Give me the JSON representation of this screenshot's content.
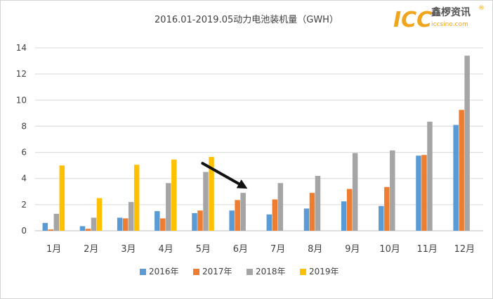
{
  "chart_data": {
    "type": "bar",
    "title": "2016.01-2019.05动力电池装机量（GWH）",
    "categories": [
      "1月",
      "2月",
      "3月",
      "4月",
      "5月",
      "6月",
      "7月",
      "8月",
      "9月",
      "10月",
      "11月",
      "12月"
    ],
    "series": [
      {
        "name": "2016年",
        "color": "#5b9bd5",
        "values": [
          0.6,
          0.35,
          1.0,
          1.5,
          1.35,
          1.55,
          1.25,
          1.7,
          2.25,
          1.9,
          5.75,
          8.1
        ]
      },
      {
        "name": "2017年",
        "color": "#ed7d31",
        "values": [
          0.1,
          0.15,
          0.95,
          0.95,
          1.55,
          2.35,
          2.4,
          2.9,
          3.2,
          3.35,
          5.8,
          9.25
        ]
      },
      {
        "name": "2018年",
        "color": "#a5a5a5",
        "values": [
          1.3,
          1.0,
          2.2,
          3.65,
          4.5,
          2.9,
          3.65,
          4.2,
          5.95,
          6.15,
          8.35,
          13.4
        ]
      },
      {
        "name": "2019年",
        "color": "#ffc000",
        "values": [
          5.0,
          2.5,
          5.05,
          5.45,
          5.65,
          null,
          null,
          null,
          null,
          null,
          null,
          null
        ]
      }
    ],
    "yticks": [
      0,
      2,
      4,
      6,
      8,
      10,
      12,
      14
    ],
    "ylim": [
      0,
      14
    ],
    "grid": true,
    "legend": "bottom",
    "annotation": {
      "type": "arrow",
      "color": "#111111",
      "target": "6月 2018年"
    }
  },
  "logo": {
    "main": "ICC",
    "chinese": "鑫椤资讯",
    "registered": "®",
    "url": "iccsino.com"
  }
}
